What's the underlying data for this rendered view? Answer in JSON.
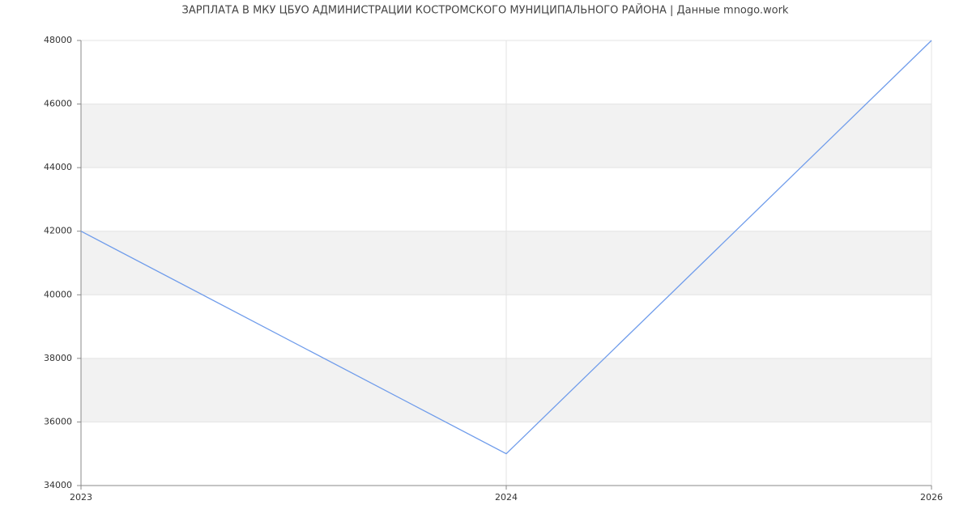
{
  "chart_data": {
    "type": "line",
    "title": "ЗАРПЛАТА В МКУ ЦБУО АДМИНИСТРАЦИИ КОСТРОМСКОГО МУНИЦИПАЛЬНОГО РАЙОНА | Данные mnogo.work",
    "categories": [
      "2023",
      "2024",
      "2026"
    ],
    "values": [
      42000,
      35000,
      48000
    ],
    "color": "#6f9ceb",
    "ylim": [
      34000,
      48000
    ],
    "yticks": [
      34000,
      36000,
      38000,
      40000,
      42000,
      44000,
      46000,
      48000
    ],
    "grid": true,
    "bands": true,
    "band_color": "#f2f2f2"
  }
}
